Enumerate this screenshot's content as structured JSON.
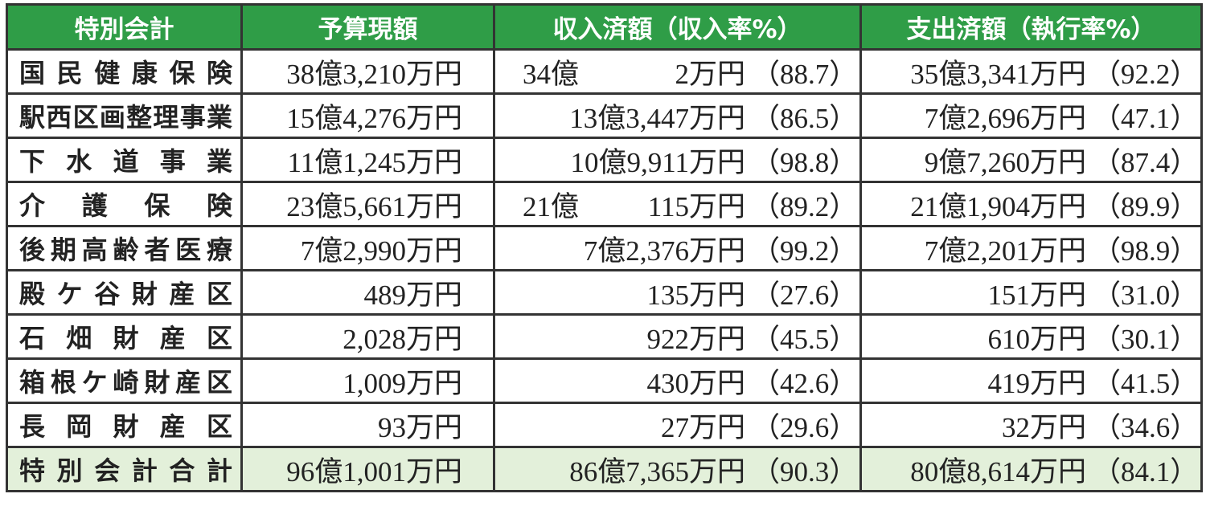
{
  "headers": {
    "name": "特別会計",
    "budget": "予算現額",
    "revenue": "収入済額（収入率%）",
    "expense": "支出済額（執行率%）"
  },
  "rows": [
    {
      "name": "国民健康保険",
      "budget": "38億3,210万円",
      "revenue_oku": "34億",
      "revenue_man": "2万円",
      "revenue_rate": "（88.7）",
      "expense": "35億3,341万円",
      "expense_rate": "（92.2）"
    },
    {
      "name": "駅西区画整理事業",
      "budget": "15億4,276万円",
      "revenue_oku": "",
      "revenue_man": "13億3,447万円",
      "revenue_rate": "（86.5）",
      "expense": "7億2,696万円",
      "expense_rate": "（47.1）"
    },
    {
      "name": "下水道事業",
      "budget": "11億1,245万円",
      "revenue_oku": "",
      "revenue_man": "10億9,911万円",
      "revenue_rate": "（98.8）",
      "expense": "9億7,260万円",
      "expense_rate": "（87.4）"
    },
    {
      "name": "介護保険",
      "budget": "23億5,661万円",
      "revenue_oku": "21億",
      "revenue_man": "115万円",
      "revenue_rate": "（89.2）",
      "expense": "21億1,904万円",
      "expense_rate": "（89.9）"
    },
    {
      "name": "後期高齢者医療",
      "budget": "7億2,990万円",
      "revenue_oku": "",
      "revenue_man": "7億2,376万円",
      "revenue_rate": "（99.2）",
      "expense": "7億2,201万円",
      "expense_rate": "（98.9）"
    },
    {
      "name": "殿ケ谷財産区",
      "budget": "489万円",
      "revenue_oku": "",
      "revenue_man": "135万円",
      "revenue_rate": "（27.6）",
      "expense": "151万円",
      "expense_rate": "（31.0）"
    },
    {
      "name": "石畑財産区",
      "budget": "2,028万円",
      "revenue_oku": "",
      "revenue_man": "922万円",
      "revenue_rate": "（45.5）",
      "expense": "610万円",
      "expense_rate": "（30.1）"
    },
    {
      "name": "箱根ケ崎財産区",
      "budget": "1,009万円",
      "revenue_oku": "",
      "revenue_man": "430万円",
      "revenue_rate": "（42.6）",
      "expense": "419万円",
      "expense_rate": "（41.5）"
    },
    {
      "name": "長岡財産区",
      "budget": "93万円",
      "revenue_oku": "",
      "revenue_man": "27万円",
      "revenue_rate": "（29.6）",
      "expense": "32万円",
      "expense_rate": "（34.6）"
    }
  ],
  "total": {
    "name": "特別会計合計",
    "budget": "96億1,001万円",
    "revenue_oku": "",
    "revenue_man": "86億7,365万円",
    "revenue_rate": "（90.3）",
    "expense": "80億8,614万円",
    "expense_rate": "（84.1）"
  },
  "colors": {
    "header_bg": "#2f9d47",
    "header_text": "#ffffff",
    "total_bg": "#e3f0da",
    "border": "#333333"
  }
}
